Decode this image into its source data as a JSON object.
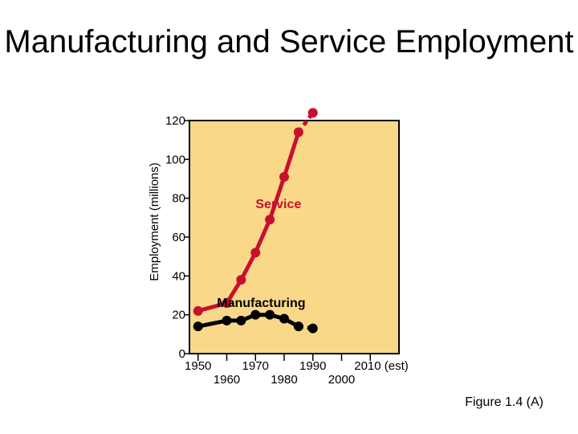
{
  "slide": {
    "title": "Manufacturing and Service Employment",
    "caption": "Figure 1.4 (A)"
  },
  "colors": {
    "plot_background": "#FAD88A",
    "service": "#C8102E",
    "manufacturing": "#000000"
  },
  "chart_data": {
    "type": "line",
    "title": "Manufacturing and Service Employment",
    "xlabel": "",
    "ylabel": "Employment (millions)",
    "ylim": [
      0,
      120
    ],
    "yticks": [
      0,
      20,
      40,
      60,
      80,
      100,
      120
    ],
    "xlim": [
      1947,
      2020
    ],
    "xticks": [
      1950,
      1960,
      1970,
      1980,
      1990,
      2000,
      2010
    ],
    "xtick_labels": [
      "1950",
      "1960",
      "1970",
      "1980",
      "1990",
      "2000",
      "2010 (est)"
    ],
    "grid": false,
    "series": [
      {
        "name": "Service",
        "x": [
          1950,
          1960,
          1965,
          1970,
          1975,
          1980,
          1985,
          1990
        ],
        "y": [
          22,
          26,
          38,
          52,
          69,
          91,
          114,
          124
        ],
        "projected_from_index": 6
      },
      {
        "name": "Manufacturing",
        "x": [
          1950,
          1960,
          1965,
          1970,
          1975,
          1980,
          1985,
          1990
        ],
        "y": [
          14,
          17,
          17,
          20,
          20,
          18,
          14,
          13
        ],
        "projected_from_index": 6
      }
    ]
  }
}
